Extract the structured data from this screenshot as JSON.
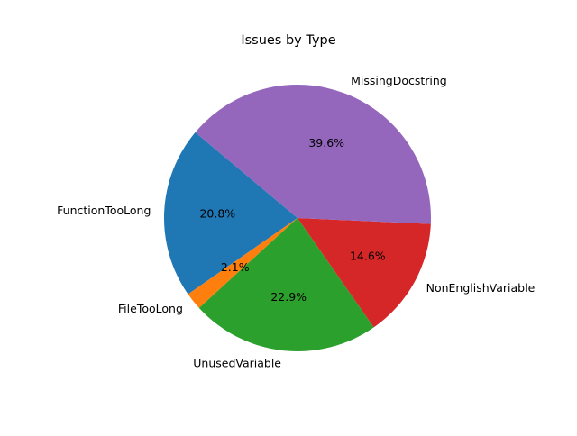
{
  "chart_data": {
    "type": "pie",
    "title": "Issues by Type",
    "categories": [
      "FunctionTooLong",
      "FileTooLong",
      "UnusedVariable",
      "NonEnglishVariable",
      "MissingDocstring"
    ],
    "values": [
      20.8,
      2.1,
      22.9,
      14.6,
      39.6
    ],
    "percent_labels": [
      "20.8%",
      "2.1%",
      "22.9%",
      "14.6%",
      "39.6%"
    ],
    "colors": [
      "#1f77b4",
      "#ff7f0e",
      "#2ca02c",
      "#d62728",
      "#9467bd"
    ],
    "start_angle_deg": 140,
    "direction": "counterclockwise",
    "legend": "none"
  }
}
